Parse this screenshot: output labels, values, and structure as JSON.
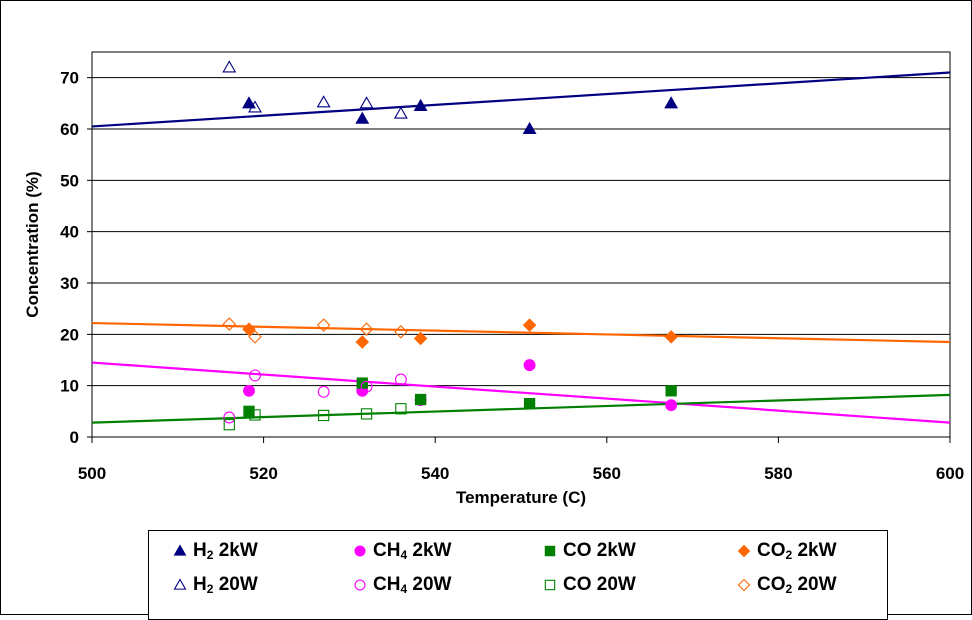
{
  "chart_data": {
    "type": "scatter",
    "title": "",
    "xlabel": "Temperature (C)",
    "ylabel": "Concentration (%)",
    "xlim": [
      500,
      600
    ],
    "ylim": [
      0,
      75
    ],
    "xticks": [
      500,
      520,
      540,
      560,
      580,
      600
    ],
    "yticks": [
      0,
      10,
      20,
      30,
      40,
      50,
      60,
      70
    ],
    "grid": "horizontal major gridlines",
    "legend_position": "bottom",
    "series": [
      {
        "name": "H2 2kW",
        "base": "H",
        "sub": "2",
        "suffix": " 2kW",
        "marker": "triangle",
        "filled": true,
        "color": "#000080",
        "points": [
          [
            518.3,
            65
          ],
          [
            531.5,
            62
          ],
          [
            538.3,
            64.5
          ],
          [
            551,
            60
          ],
          [
            567.5,
            65
          ]
        ]
      },
      {
        "name": "CH4 2kW",
        "base": "CH",
        "sub": "4",
        "suffix": " 2kW",
        "marker": "circle",
        "filled": true,
        "color": "#FF00FF",
        "points": [
          [
            518.3,
            9
          ],
          [
            531.5,
            9
          ],
          [
            538.3,
            7.2
          ],
          [
            551,
            14
          ],
          [
            567.5,
            6.2
          ]
        ]
      },
      {
        "name": "CO 2kW",
        "base": "CO",
        "sub": "",
        "suffix": " 2kW",
        "marker": "square",
        "filled": true,
        "color": "#008000",
        "points": [
          [
            518.3,
            5
          ],
          [
            531.5,
            10.5
          ],
          [
            538.3,
            7.3
          ],
          [
            551,
            6.5
          ],
          [
            567.5,
            9
          ]
        ]
      },
      {
        "name": "CO2 2kW",
        "base": "CO",
        "sub": "2",
        "suffix": " 2kW",
        "marker": "diamond",
        "filled": true,
        "color": "#FF6600",
        "points": [
          [
            518.3,
            21
          ],
          [
            531.5,
            18.5
          ],
          [
            538.3,
            19.2
          ],
          [
            551,
            21.8
          ],
          [
            567.5,
            19.5
          ]
        ]
      },
      {
        "name": "H2 20W",
        "base": "H",
        "sub": "2",
        "suffix": " 20W",
        "marker": "triangle",
        "filled": false,
        "color": "#000080",
        "points": [
          [
            516,
            72
          ],
          [
            519,
            64.2
          ],
          [
            527,
            65.2
          ],
          [
            532,
            65
          ],
          [
            536,
            63
          ]
        ]
      },
      {
        "name": "CH4 20W",
        "base": "CH",
        "sub": "4",
        "suffix": " 20W",
        "marker": "circle",
        "filled": false,
        "color": "#FF00FF",
        "points": [
          [
            516,
            3.8
          ],
          [
            519,
            12
          ],
          [
            527,
            8.8
          ],
          [
            532,
            9.8
          ],
          [
            536,
            11.2
          ]
        ]
      },
      {
        "name": "CO 20W",
        "base": "CO",
        "sub": "",
        "suffix": " 20W",
        "marker": "square",
        "filled": false,
        "color": "#008000",
        "points": [
          [
            516,
            2.4
          ],
          [
            519,
            4.3
          ],
          [
            527,
            4.2
          ],
          [
            532,
            4.5
          ],
          [
            536,
            5.5
          ]
        ]
      },
      {
        "name": "CO2 20W",
        "base": "CO",
        "sub": "2",
        "suffix": " 20W",
        "marker": "diamond",
        "filled": false,
        "color": "#FF6600",
        "points": [
          [
            516,
            22
          ],
          [
            519,
            19.5
          ],
          [
            527,
            21.8
          ],
          [
            532,
            21
          ],
          [
            536,
            20.5
          ]
        ]
      }
    ],
    "trendlines": [
      {
        "color": "#000080",
        "from": [
          500,
          60.5
        ],
        "to": [
          600,
          71
        ]
      },
      {
        "color": "#FF6600",
        "from": [
          500,
          22.2
        ],
        "to": [
          600,
          18.5
        ]
      },
      {
        "color": "#FF00FF",
        "from": [
          500,
          14.5
        ],
        "to": [
          600,
          2.8
        ]
      },
      {
        "color": "#008000",
        "from": [
          500,
          2.8
        ],
        "to": [
          600,
          8.2
        ]
      }
    ]
  }
}
